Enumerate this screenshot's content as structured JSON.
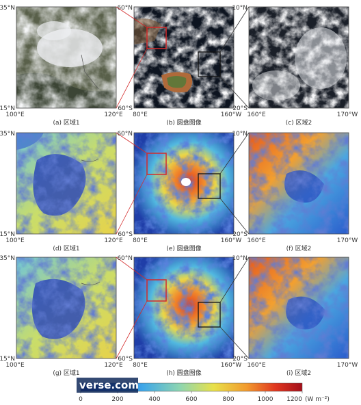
{
  "colors": {
    "sat_land": "#6b6e52",
    "sat_cloud": "#e8eaec",
    "sat_ocean": "#1b2434",
    "flux_ramp": [
      "#1b2e9a",
      "#2a66d6",
      "#3fa7e8",
      "#8fd6b0",
      "#e8e14a",
      "#f29a2e",
      "#e0361f",
      "#a3101b"
    ],
    "red_box": "#d42a2a",
    "black_box": "#111111"
  },
  "row1": {
    "left": {
      "lat_top": "35°N",
      "lat_bot": "15°N",
      "lon_left": "100°E",
      "lon_right": "120°E",
      "caption": "(a) 区域1"
    },
    "center": {
      "lat_top": "60°N",
      "lat_bot": "60°S",
      "lon_left": "80°E",
      "lon_right": "160°W",
      "caption": "(b) 圆盘图像"
    },
    "right": {
      "lat_top": "10°N",
      "lat_bot": "20°S",
      "lon_left": "160°E",
      "lon_right": "170°W",
      "caption": "(c) 区域2"
    }
  },
  "row2": {
    "left": {
      "lat_top": "35°N",
      "lat_bot": "15°N",
      "lon_left": "100°E",
      "lon_right": "120°E",
      "caption": "(d) 区域1"
    },
    "center": {
      "lat_top": "60°N",
      "lat_bot": "60°S",
      "lon_left": "80°E",
      "lon_right": "160°W",
      "caption": "(e) 圆盘图像"
    },
    "right": {
      "lat_top": "10°N",
      "lat_bot": "20°S",
      "lon_left": "160°E",
      "lon_right": "170°W",
      "caption": "(f) 区域2"
    }
  },
  "row3": {
    "left": {
      "lat_top": "35°N",
      "lat_bot": "15°N",
      "lon_left": "100°E",
      "lon_right": "120°E",
      "caption": "(g) 区域1"
    },
    "center": {
      "lat_top": "60°N",
      "lat_bot": "60°S",
      "lon_left": "80°E",
      "lon_right": "160°W",
      "caption": "(h) 圆盘图像"
    },
    "right": {
      "lat_top": "10°N",
      "lat_bot": "20°S",
      "lon_left": "160°E",
      "lon_right": "170°W",
      "caption": "(i) 区域2"
    }
  },
  "colorbar": {
    "ticks": [
      "0",
      "200",
      "400",
      "600",
      "800",
      "1000",
      "1200"
    ],
    "unit": "(W m⁻²)",
    "min": 0,
    "max": 1200
  },
  "watermark": "verse.com"
}
